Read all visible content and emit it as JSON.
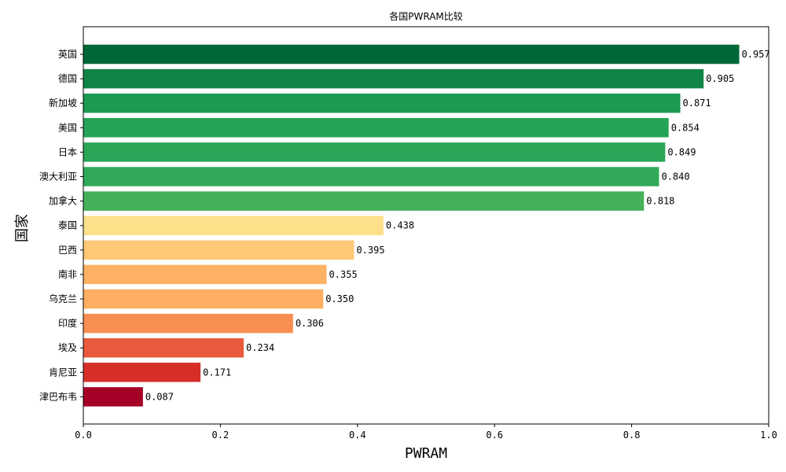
{
  "chart_data": {
    "type": "bar",
    "orientation": "horizontal",
    "title": "各国PWRAM比较",
    "xlabel": "PWRAM",
    "ylabel": "国家",
    "xlim": [
      0,
      1.0
    ],
    "xticks": [
      "0.0",
      "0.2",
      "0.4",
      "0.6",
      "0.8",
      "1.0"
    ],
    "grid": false,
    "categories": [
      "英国",
      "德国",
      "新加坡",
      "美国",
      "日本",
      "澳大利亚",
      "加拿大",
      "泰国",
      "巴西",
      "南非",
      "乌克兰",
      "印度",
      "埃及",
      "肯尼亚",
      "津巴布韦"
    ],
    "values": [
      0.957,
      0.905,
      0.871,
      0.854,
      0.849,
      0.84,
      0.818,
      0.438,
      0.395,
      0.355,
      0.35,
      0.306,
      0.234,
      0.171,
      0.087
    ],
    "value_labels": [
      "0.957",
      "0.905",
      "0.871",
      "0.854",
      "0.849",
      "0.840",
      "0.818",
      "0.438",
      "0.395",
      "0.355",
      "0.350",
      "0.306",
      "0.234",
      "0.171",
      "0.087"
    ],
    "colors": [
      "#006837",
      "#0f8446",
      "#1b9a51",
      "#25a356",
      "#29a657",
      "#30aa59",
      "#45b05a",
      "#fee08b",
      "#fec877",
      "#fdb163",
      "#fdae61",
      "#f98e52",
      "#e85a3b",
      "#d62f27",
      "#a50026"
    ]
  }
}
